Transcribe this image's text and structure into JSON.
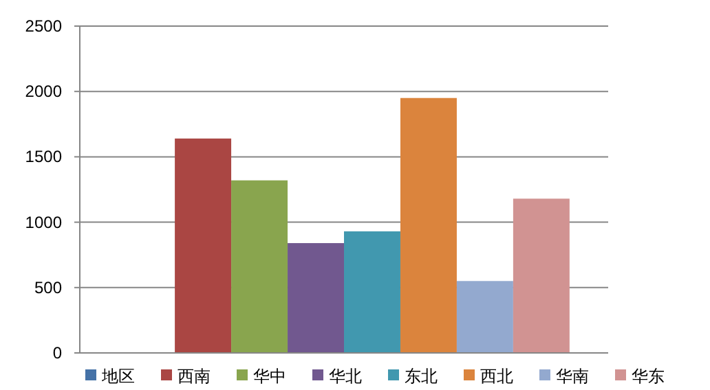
{
  "chart_data": {
    "type": "bar",
    "categories": [
      null
    ],
    "series": [
      {
        "name": "地区",
        "color": "#4572a7",
        "values": [
          null
        ]
      },
      {
        "name": "西南",
        "color": "#aa4643",
        "values": [
          1640
        ]
      },
      {
        "name": "华中",
        "color": "#89a54e",
        "values": [
          1320
        ]
      },
      {
        "name": "华北",
        "color": "#71588f",
        "values": [
          840
        ]
      },
      {
        "name": "东北",
        "color": "#4198af",
        "values": [
          930
        ]
      },
      {
        "name": "西北",
        "color": "#db843d",
        "values": [
          1950
        ]
      },
      {
        "name": "华南",
        "color": "#93a9cf",
        "values": [
          550
        ]
      },
      {
        "name": "华东",
        "color": "#d19392",
        "values": [
          1180
        ]
      }
    ],
    "ylim": [
      0,
      2500
    ],
    "yticks": [
      0,
      500,
      1000,
      1500,
      2000,
      2500
    ],
    "grid": "y",
    "legend": "bottom"
  }
}
